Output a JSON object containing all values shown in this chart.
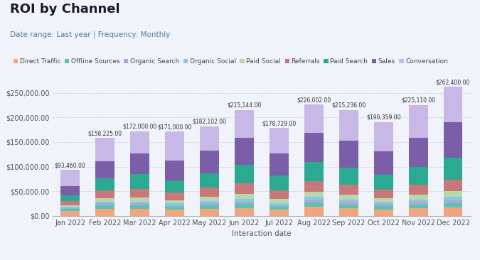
{
  "title": "ROI by Channel",
  "subtitle": "Date range: Last year | Frequency: Monthly",
  "xlabel": "Interaction date",
  "months": [
    "Jan 2022",
    "Feb 2022",
    "Mar 2022",
    "Apr 2022",
    "May 2022",
    "Jun 2022",
    "Jul 2022",
    "Aug 2022",
    "Sep 2022",
    "Oct 2022",
    "Nov 2022",
    "Dec 2022"
  ],
  "totals": [
    93460,
    158225,
    172000,
    171000,
    182102,
    215144,
    178729,
    226002,
    215236,
    190359,
    225110,
    262400
  ],
  "channels": [
    "Direct Traffic",
    "Offline Sources",
    "Organic Search",
    "Organic Social",
    "Paid Social",
    "Referrals",
    "Paid Search",
    "Sales",
    "Conversation"
  ],
  "colors": [
    "#f4a47a",
    "#4ec9b5",
    "#b8a0d8",
    "#7ecde8",
    "#b8d8a8",
    "#c87878",
    "#2aaa90",
    "#7b5ea8",
    "#c8b8e8"
  ],
  "data": {
    "Direct Traffic": [
      10000,
      14000,
      14000,
      12000,
      14000,
      16000,
      12000,
      18000,
      15000,
      13000,
      15000,
      17000
    ],
    "Offline Sources": [
      4000,
      7000,
      7000,
      6000,
      7000,
      8000,
      6000,
      9000,
      8000,
      7000,
      8000,
      9000
    ],
    "Organic Search": [
      2000,
      4000,
      4000,
      4000,
      5000,
      5000,
      4000,
      6000,
      5000,
      4000,
      5000,
      6000
    ],
    "Organic Social": [
      2000,
      4000,
      4000,
      3000,
      4000,
      5000,
      4000,
      5000,
      5000,
      4000,
      5000,
      6000
    ],
    "Paid Social": [
      4000,
      7000,
      8000,
      7000,
      9000,
      10000,
      8000,
      11000,
      10000,
      8000,
      10000,
      12000
    ],
    "Referrals": [
      8000,
      15000,
      18000,
      15000,
      18000,
      22000,
      18000,
      22000,
      20000,
      17000,
      20000,
      24000
    ],
    "Paid Search": [
      12000,
      25000,
      30000,
      25000,
      30000,
      38000,
      30000,
      38000,
      35000,
      30000,
      36000,
      44000
    ],
    "Sales": [
      18000,
      35000,
      42000,
      40000,
      45000,
      55000,
      45000,
      60000,
      55000,
      48000,
      60000,
      72000
    ],
    "Conversation": [
      33460,
      47225,
      45000,
      59000,
      50102,
      56144,
      51729,
      57002,
      62236,
      59359,
      66110,
      72400
    ]
  },
  "ylim": [
    0,
    275000
  ],
  "yticks": [
    0,
    50000,
    100000,
    150000,
    200000,
    250000
  ],
  "background_color": "#f0f4fa",
  "bar_width": 0.55,
  "title_fontsize": 13,
  "subtitle_fontsize": 7.5,
  "legend_fontsize": 6.5,
  "tick_fontsize": 7,
  "label_fontsize": 7.5,
  "annotation_fontsize": 5.5
}
